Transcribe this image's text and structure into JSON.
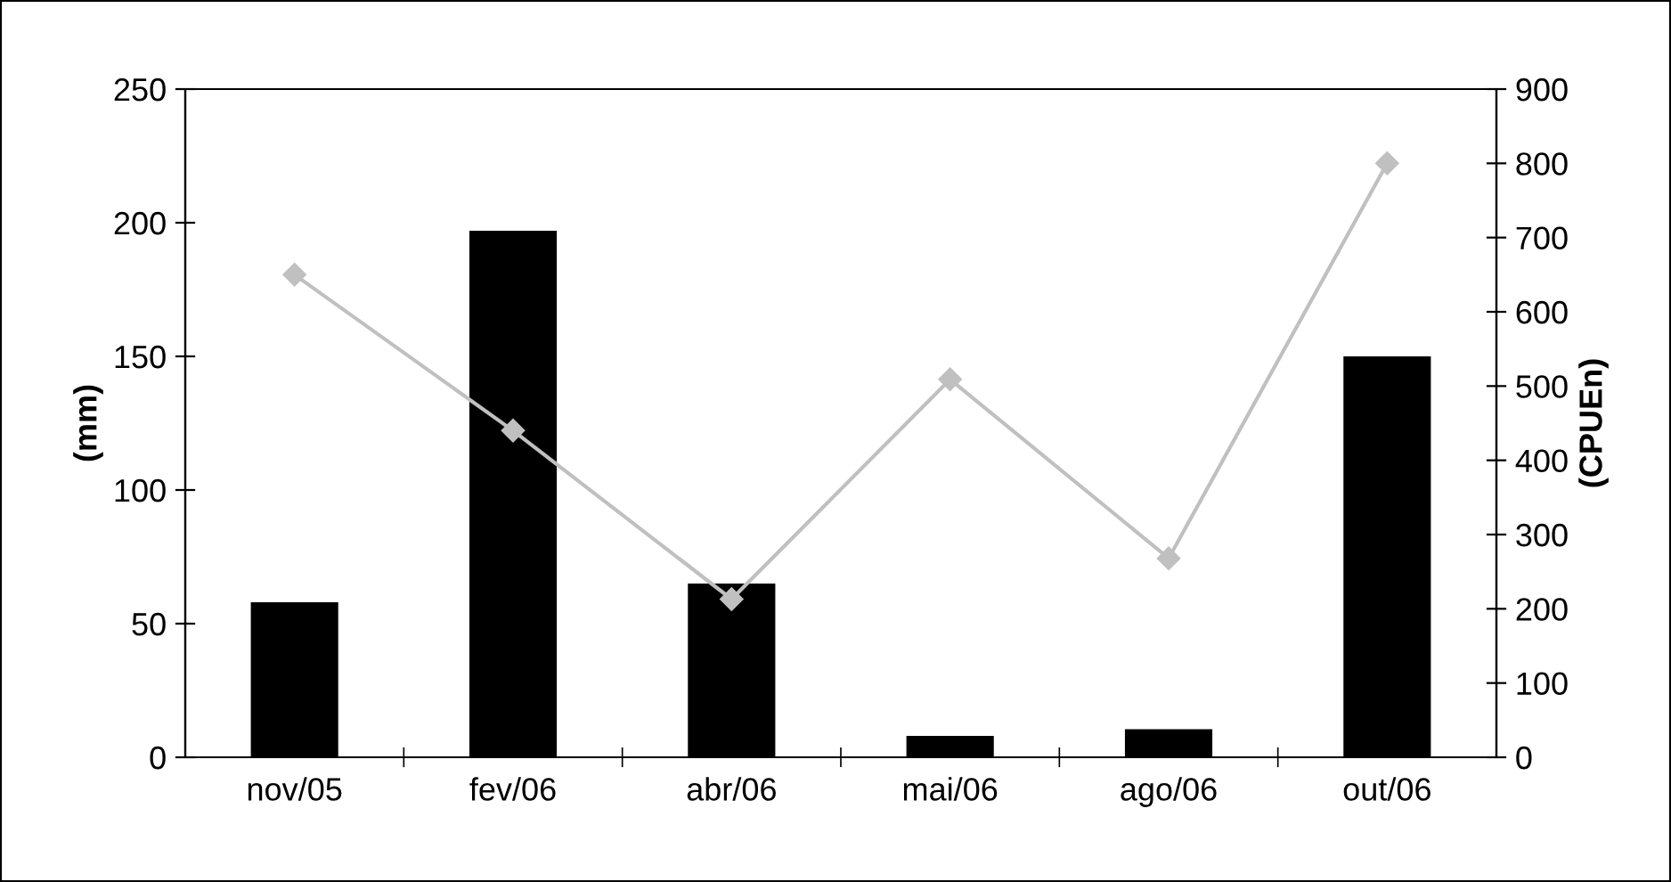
{
  "chart_data": {
    "type": "bar",
    "categories": [
      "nov/05",
      "fev/06",
      "abr/06",
      "mai/06",
      "ago/06",
      "out/06"
    ],
    "series": [
      {
        "color": "#000000",
        "values": [
          58,
          197,
          65,
          8,
          10.5,
          150
        ]
      },
      {
        "type": "line",
        "axis": "y2",
        "color": "#c0c0c0",
        "marker": "diamond",
        "values": [
          650,
          440,
          213,
          509,
          268,
          800
        ]
      }
    ],
    "ylabel": "(mm)",
    "y2label": "(CPUEn)",
    "ylim": [
      0,
      250
    ],
    "yticks": [
      0,
      50,
      100,
      150,
      200,
      250
    ],
    "y2lim": [
      0,
      900
    ],
    "y2ticks": [
      0,
      100,
      200,
      300,
      400,
      500,
      600,
      700,
      800,
      900
    ],
    "grid": false,
    "legend": false
  }
}
